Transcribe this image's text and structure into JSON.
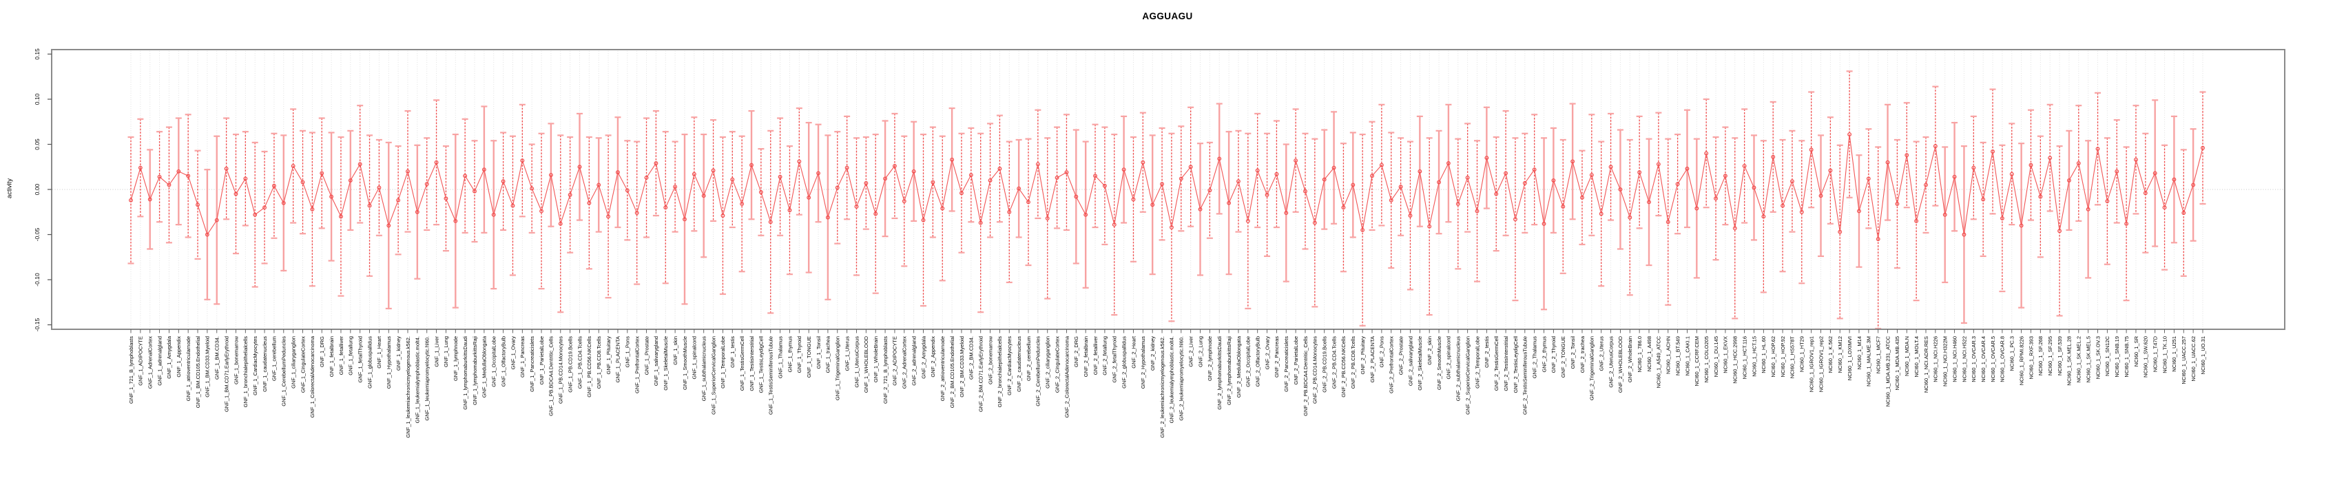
{
  "chart_data": {
    "type": "errorbar-line",
    "title": "AGGUAGU",
    "xlabel": "",
    "ylabel": "activity",
    "ylim": [
      -0.155,
      0.155
    ],
    "ytick_values": [
      0.15,
      0.1,
      0.05,
      0.0,
      -0.05,
      -0.1,
      -0.15
    ],
    "ytick_labels": [
      "0.15",
      "0.10",
      "0.05",
      "0.00",
      "-0.05",
      "-0.10",
      "-0.15"
    ],
    "grid": "dotted vertical gridline per category plus dotted zero line",
    "legend": "none",
    "marker": "open-circle",
    "groups": [
      {
        "prefix": "GNF_1_",
        "labels": [
          "721_B_lymphoblasts",
          "ADIPOCYTE",
          "AdrenalCortex",
          "adrenalgland",
          "Amygdala",
          "Appendix",
          "atrioventricularnode",
          "BM.CD105.Endothelial",
          "BM.CD33.Myeloid",
          "BM.CD34.",
          "BM.CD71.EarlyErythroid",
          "bonemarrow",
          "bronchialepithelialcells",
          "CardiacMyocytes",
          "caudatenucleus",
          "cerebellum",
          "CerebellumPeduncles",
          "ciliaryganglion",
          "CingulateCortex",
          "ColorectalAdenocarcinoma",
          "DRG",
          "fetalbrain",
          "fetalliver",
          "fetallung",
          "fetalThyroid",
          "globuspallidus",
          "Heart",
          "Hypothalamus",
          "kidney",
          "leukemiachronicmyelogenous.k562.",
          "leukemialymphoblastic.molt4.",
          "leukemiapromyelocytic.hl60.",
          "Liver",
          "Lung",
          "lymphnode",
          "lymphomaburkittsDaudi",
          "lymphomaburkittsRaji",
          "MedullaOblongata",
          "OccipitalLobe",
          "OlfactoryBulb",
          "Ovary",
          "Pancreas",
          "Pancreaticislets",
          "ParietalLobe",
          "PB.BDCA4.Dentritic_Cells",
          "PB.CD14.Monocytes",
          "PB.CD19.Bcells",
          "PB.CD4.Tcells",
          "PB.CD56.NKCells",
          "PB.CD8.Tcells",
          "Pituitary",
          "PLACENTA",
          "Pons",
          "PrefrontalCortex",
          "Prostate",
          "salivarygland",
          "SkeletalMuscle",
          "skin",
          "SmoothMuscle",
          "spinalcord",
          "subthalamicnucleus",
          "SuperiorCervicalGanglion",
          "TemporalLobe",
          "testis",
          "TestisGermCell",
          "TestisInterstitial",
          "TestisLeydigCell",
          "TestisSeminiferousTubule",
          "Thalamus",
          "thymus",
          "Thyroid",
          "TONGUE",
          "Tonsil",
          "trachea",
          "TrigeminalGanglion",
          "Uterus",
          "UterusCorpus",
          "WHOLEBLOOD",
          "WholeBrain"
        ]
      },
      {
        "prefix": "GNF_2_",
        "labels": [
          "721_B_lymphoblasts",
          "ADIPOCYTE",
          "AdrenalCortex",
          "adrenalgland",
          "Amygdala",
          "Appendix",
          "atrioventricularnode",
          "BM.CD105.Endothelial",
          "BM.CD33.Myeloid",
          "BM.CD34.",
          "BM.CD71.EarlyErythroid",
          "bonemarrow",
          "bronchialepithelialcells",
          "CardiacMyocytes",
          "caudatenucleus",
          "cerebellum",
          "CerebellumPeduncles",
          "ciliaryganglion",
          "CingulateCortex",
          "ColorectalAdenocarcinoma",
          "DRG",
          "fetalbrain",
          "fetalliver",
          "fetallung",
          "fetalThyroid",
          "globuspallidus",
          "Heart",
          "Hypothalamus",
          "kidney",
          "leukemiachronicmyelogenous.k562.",
          "leukemialymphoblastic.molt4.",
          "leukemiapromyelocytic.hl60.",
          "Liver",
          "Lung",
          "lymphnode",
          "lymphomaburkittsDaudi",
          "lymphomaburkittsRaji",
          "MedullaOblongata",
          "OccipitalLobe",
          "OlfactoryBulb",
          "Ovary",
          "Pancreas",
          "Pancreaticislets",
          "ParietalLobe",
          "PB.BDCA4.Dentritic_Cells",
          "PB.CD14.Monocytes",
          "PB.CD19.Bcells",
          "PB.CD4.Tcells",
          "PB.CD56.NKCells",
          "PB.CD8.Tcells",
          "Pituitary",
          "PLACENTA",
          "Pons",
          "PrefrontalCortex",
          "Prostate",
          "salivarygland",
          "SkeletalMuscle",
          "skin",
          "SmoothMuscle",
          "spinalcord",
          "subthalamicnucleus",
          "SuperiorCervicalGanglion",
          "TemporalLobe",
          "testis",
          "TestisGermCell",
          "TestisInterstitial",
          "TestisLeydigCell",
          "TestisSeminiferousTubule",
          "Thalamus",
          "thymus",
          "Thyroid",
          "TONGUE",
          "Tonsil",
          "trachea",
          "TrigeminalGanglion",
          "Uterus",
          "UterusCorpus",
          "WHOLEBLOOD",
          "WholeBrain"
        ]
      },
      {
        "prefix": "NCI60_1_",
        "labels": [
          "786.0",
          "A498",
          "A549_ATCC",
          "ACHN",
          "BT.549",
          "CAKI.1",
          "CCRF.CEM",
          "COLO205",
          "DU.145",
          "EKVX",
          "HCC.2998",
          "HCT.116",
          "HCT.15",
          "HL.60",
          "HOP.62",
          "HOP.92",
          "HS578T",
          "HT29",
          "IGROV1_rep1",
          "IGROV1_rep2",
          "K.562",
          "KM12",
          "LOXIMVI",
          "M14",
          "MALME.3M",
          "MCF7",
          "MDA.MB.231_ATCC",
          "MDA.MB.435",
          "MDA.N",
          "MOLT.4",
          "NCI.ADR.RES",
          "NCI.H226",
          "NCI.H322M",
          "NCI.H460",
          "NCI.H522",
          "OVCAR.3",
          "OVCAR.4",
          "OVCAR.5",
          "OVCAR.8",
          "PC.3",
          "RPMI.8226",
          "RXF.393",
          "SF.268",
          "SF.295",
          "SF.539",
          "SK.MEL.28",
          "SK.MEL.2",
          "SK.MEL.5",
          "SK.OV.3",
          "SN12C",
          "SNB.19",
          "SNB.75",
          "SR",
          "SW.620",
          "T47D",
          "TK.10",
          "U251",
          "UACC.257",
          "UACC.62",
          "UO.31"
        ]
      }
    ],
    "means": [
      -0.012,
      0.024,
      -0.011,
      0.014,
      0.005,
      0.02,
      0.015,
      -0.017,
      -0.05,
      -0.034,
      0.023,
      -0.005,
      0.012,
      -0.028,
      -0.02,
      0.004,
      -0.015,
      0.026,
      0.008,
      -0.022,
      0.018,
      -0.008,
      -0.03,
      0.01,
      0.028,
      -0.018,
      0.002,
      -0.04,
      -0.012,
      0.02,
      -0.025,
      0.006,
      0.03,
      -0.01,
      -0.035,
      0.015,
      -0.002,
      0.022,
      -0.028,
      0.009,
      -0.018,
      0.032,
      0.001,
      -0.024,
      0.016,
      -0.038,
      -0.006,
      0.025,
      -0.015,
      0.005,
      -0.03,
      0.019,
      -0.001,
      -0.026,
      0.013,
      0.029,
      -0.02,
      0.003,
      -0.033,
      0.017,
      -0.007,
      0.021,
      -0.029,
      0.011,
      -0.016,
      0.027,
      -0.003,
      -0.036,
      0.014,
      -0.023,
      0.031,
      -0.009,
      0.018,
      -0.031,
      0.002,
      0.024,
      -0.019,
      0.007,
      -0.027,
      0.012,
      0.026,
      -0.013,
      0.02,
      -0.034,
      0.008,
      -0.021,
      0.033,
      -0.004,
      0.016,
      -0.037,
      0.01,
      0.023,
      -0.025,
      0.001,
      -0.014,
      0.028,
      -0.032,
      0.013,
      0.019,
      -0.008,
      -0.028,
      0.015,
      0.004,
      -0.039,
      0.022,
      -0.011,
      0.03,
      -0.017,
      0.006,
      -0.042,
      0.012,
      0.025,
      -0.022,
      -0.001,
      0.034,
      -0.015,
      0.009,
      -0.035,
      0.021,
      -0.006,
      0.017,
      -0.026,
      0.032,
      -0.002,
      -0.037,
      0.011,
      0.024,
      -0.02,
      0.005,
      -0.045,
      0.015,
      0.027,
      -0.012,
      0.003,
      -0.029,
      0.02,
      -0.041,
      0.008,
      0.029,
      -0.016,
      0.013,
      -0.024,
      0.035,
      -0.005,
      0.018,
      -0.033,
      0.007,
      0.022,
      -0.038,
      0.01,
      -0.019,
      0.031,
      -0.009,
      0.016,
      -0.027,
      0.025,
      0.0,
      -0.031,
      0.019,
      -0.014,
      0.028,
      -0.036,
      0.006,
      0.023,
      -0.021,
      0.04,
      -0.01,
      0.015,
      -0.043,
      0.026,
      0.002,
      -0.03,
      0.036,
      -0.018,
      0.009,
      -0.025,
      0.044,
      -0.007,
      0.021,
      -0.047,
      0.061,
      -0.024,
      0.012,
      -0.055,
      0.03,
      -0.016,
      0.038,
      -0.035,
      0.005,
      0.048,
      -0.028,
      0.014,
      -0.05,
      0.024,
      -0.011,
      0.042,
      -0.032,
      0.017,
      -0.04,
      0.027,
      -0.008,
      0.035,
      -0.046,
      0.01,
      0.029,
      -0.022,
      0.045,
      -0.013,
      0.02,
      -0.038,
      0.033,
      -0.004,
      0.018,
      -0.02,
      0.011,
      -0.026,
      0.005,
      0.046
    ],
    "errors": [
      0.07,
      0.054,
      0.055,
      0.05,
      0.064,
      0.059,
      0.068,
      0.06,
      0.072,
      0.093,
      0.056,
      0.066,
      0.052,
      0.08,
      0.062,
      0.058,
      0.075,
      0.063,
      0.057,
      0.085,
      0.061,
      0.071,
      0.088,
      0.055,
      0.065,
      0.078,
      0.053,
      0.092,
      0.06,
      0.067,
      0.074,
      0.051,
      0.069,
      0.058,
      0.096,
      0.063,
      0.056,
      0.07,
      0.082,
      0.054,
      0.077,
      0.062,
      0.049,
      0.086,
      0.057,
      0.098,
      0.064,
      0.059,
      0.073,
      0.052,
      0.09,
      0.061,
      0.055,
      0.079,
      0.066,
      0.058,
      0.084,
      0.05,
      0.094,
      0.063,
      0.068,
      0.056,
      0.087,
      0.053,
      0.075,
      0.06,
      0.048,
      0.101,
      0.065,
      0.071,
      0.059,
      0.083,
      0.054,
      0.091,
      0.062,
      0.057,
      0.076,
      0.051,
      0.088,
      0.064,
      0.058,
      0.072,
      0.055,
      0.095,
      0.061,
      0.08,
      0.057,
      0.066,
      0.052,
      0.099,
      0.063,
      0.059,
      0.078,
      0.054,
      0.07,
      0.06,
      0.089,
      0.056,
      0.064,
      0.074,
      0.081,
      0.057,
      0.065,
      0.1,
      0.059,
      0.069,
      0.055,
      0.077,
      0.062,
      0.104,
      0.058,
      0.066,
      0.073,
      0.053,
      0.061,
      0.079,
      0.056,
      0.097,
      0.063,
      0.068,
      0.059,
      0.076,
      0.057,
      0.064,
      0.093,
      0.055,
      0.062,
      0.071,
      0.058,
      0.106,
      0.06,
      0.067,
      0.075,
      0.054,
      0.082,
      0.061,
      0.098,
      0.057,
      0.065,
      0.072,
      0.06,
      0.078,
      0.056,
      0.063,
      0.069,
      0.09,
      0.055,
      0.061,
      0.095,
      0.058,
      0.074,
      0.064,
      0.052,
      0.067,
      0.08,
      0.059,
      0.066,
      0.086,
      0.062,
      0.07,
      0.057,
      0.092,
      0.055,
      0.065,
      0.077,
      0.06,
      0.068,
      0.054,
      0.1,
      0.063,
      0.058,
      0.084,
      0.061,
      0.073,
      0.056,
      0.079,
      0.064,
      0.067,
      0.059,
      0.096,
      0.07,
      0.062,
      0.055,
      0.102,
      0.064,
      0.071,
      0.058,
      0.088,
      0.053,
      0.066,
      0.075,
      0.06,
      0.098,
      0.057,
      0.063,
      0.069,
      0.081,
      0.056,
      0.091,
      0.061,
      0.067,
      0.059,
      0.094,
      0.055,
      0.064,
      0.076,
      0.062,
      0.07,
      0.057,
      0.085,
      0.06,
      0.066,
      0.081,
      0.069,
      0.07,
      0.07,
      0.062,
      0.062
    ],
    "colors": {
      "point_stroke": "#f25050",
      "series_line": "#f25555",
      "errorbar_dashed": "#f04848",
      "errorbar_solid": "#f7a2a2",
      "errorbar_cap": "#f8a3a3",
      "gridline": "#e0e0e0",
      "zero_line": "#c8c8c8",
      "plot_border": "#8a8a8a",
      "tick": "#555555",
      "text": "#000000"
    }
  }
}
